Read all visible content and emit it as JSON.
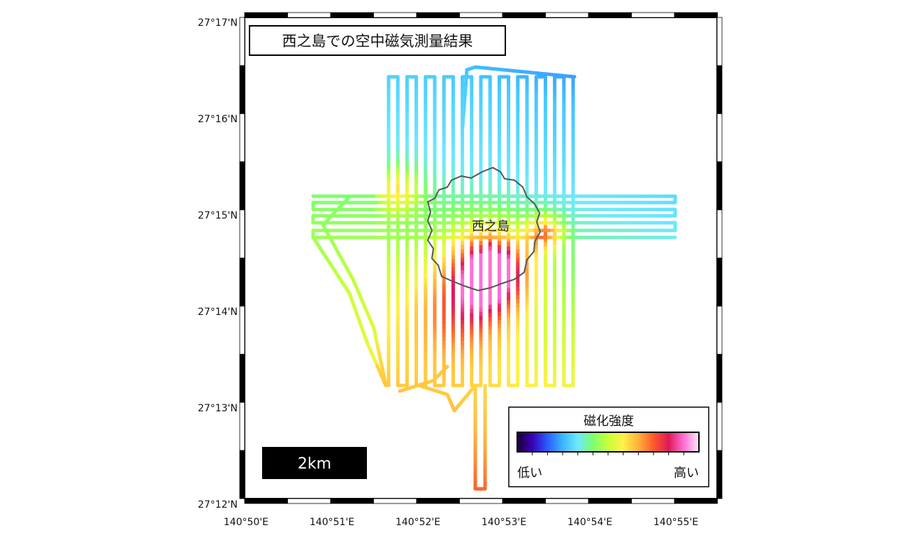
{
  "map": {
    "title": "西之島での空中磁気測量結果",
    "island_label": "西之島",
    "lat_labels": [
      "27°17'N",
      "27°16'N",
      "27°15'N",
      "27°14'N",
      "27°13'N",
      "27°12'N"
    ],
    "lon_labels": [
      "140°50'E",
      "140°51'E",
      "140°52'E",
      "140°53'E",
      "140°54'E",
      "140°55'E"
    ],
    "scale_bar": "2km",
    "legend": {
      "title": "磁化強度",
      "low_label": "低い",
      "high_label": "高い",
      "gradient_colors": [
        "#1a0033",
        "#3a00b8",
        "#2b5cff",
        "#39b6ff",
        "#6ee8ff",
        "#7dff6e",
        "#c8ff3a",
        "#fff04a",
        "#ffb13a",
        "#ff5a2a",
        "#e0185a",
        "#ff6fd6",
        "#ffe9f7"
      ]
    },
    "colors": {
      "survey_low": "#45c8ff",
      "survey_mid": "#7dff6e",
      "survey_high": "#ff2f5a",
      "coastline": "#555555"
    }
  }
}
